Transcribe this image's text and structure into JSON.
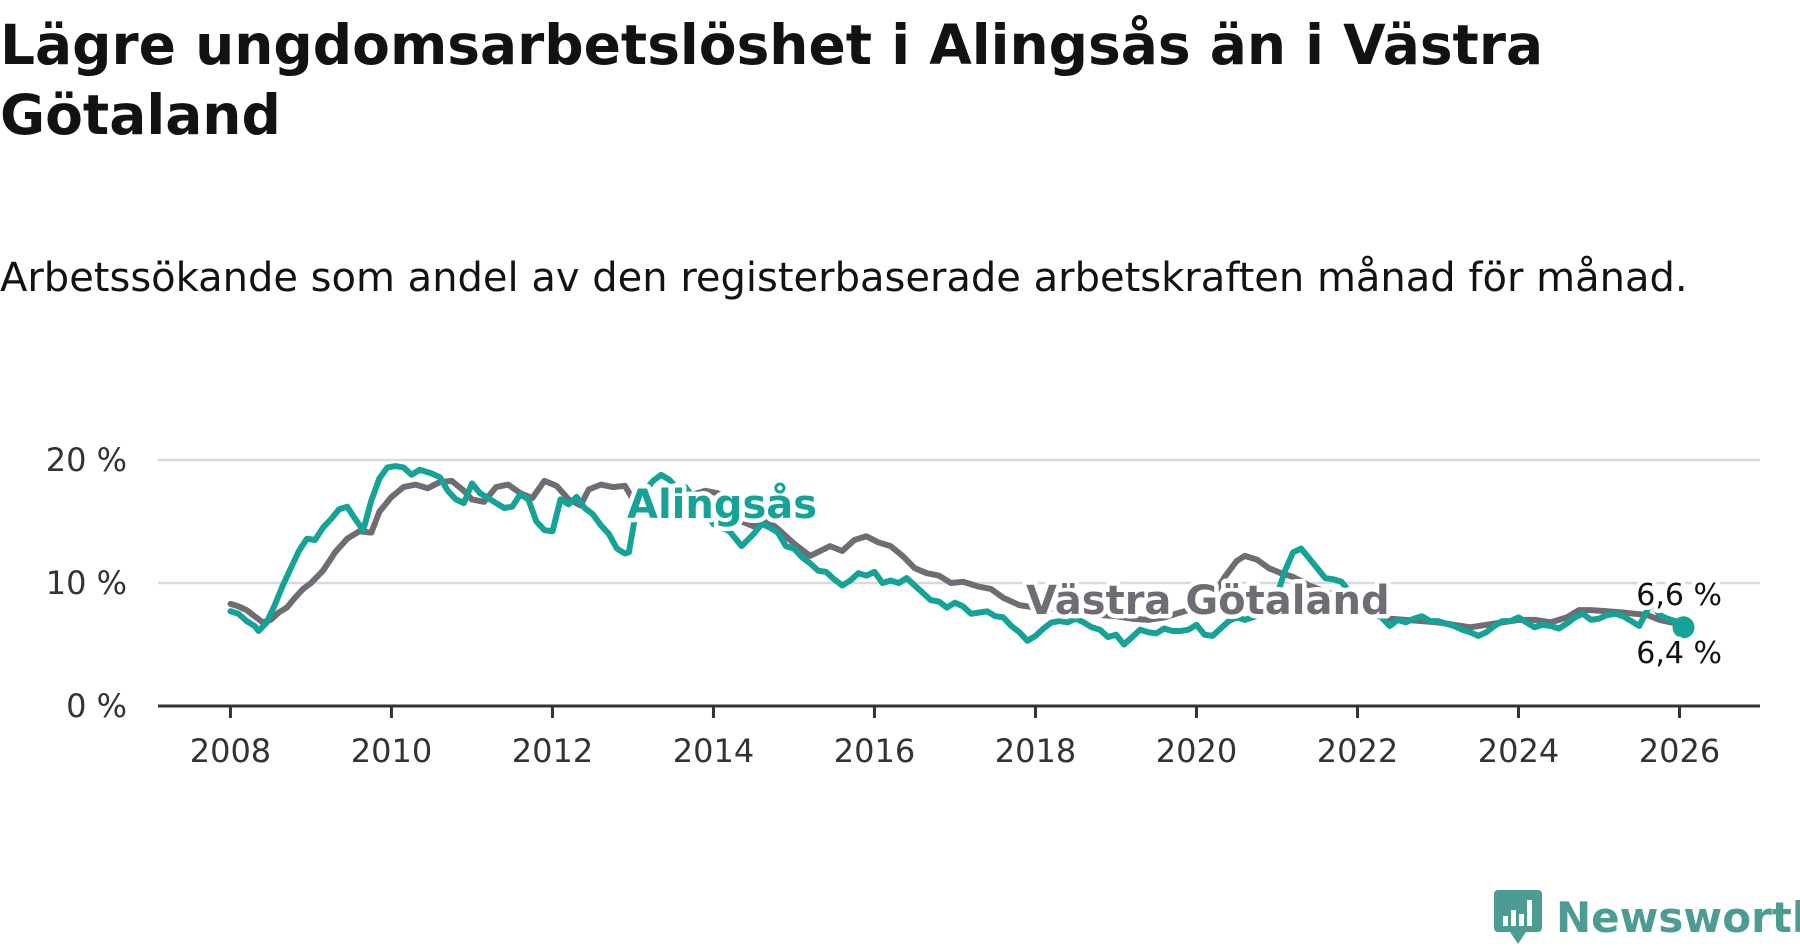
{
  "title": "Lägre ungdomsarbetslöshet i Alingsås än i Västra Götaland",
  "subtitle": "Arbetssökande som andel av den registerbaserade arbetskraften månad för månad.",
  "brand": {
    "name": "Newsworthy",
    "icon": "newsworthy-logo-icon",
    "color": "#4c9c93"
  },
  "chart_data": {
    "type": "line",
    "title": "Lägre ungdomsarbetslöshet i Alingsås än i Västra Götaland",
    "xlabel": "",
    "ylabel": "",
    "xlim": [
      2007.1,
      2027.0
    ],
    "ylim": [
      0,
      20
    ],
    "x_ticks": [
      2008,
      2010,
      2012,
      2014,
      2016,
      2018,
      2020,
      2022,
      2024,
      2026
    ],
    "x_tick_labels": [
      "2008",
      "2010",
      "2012",
      "2014",
      "2016",
      "2018",
      "2020",
      "2022",
      "2024",
      "2026"
    ],
    "y_ticks": [
      0,
      10,
      20
    ],
    "y_tick_labels": [
      "0 %",
      "10 %",
      "20 %"
    ],
    "grid": "horizontal",
    "series": [
      {
        "name": "Västra Götaland",
        "color": "#6f6c74",
        "label": "Västra Götaland",
        "end_label": "6,6 %",
        "end_value": 6.6,
        "points": [
          [
            2008.0,
            8.3
          ],
          [
            2008.1,
            8.1
          ],
          [
            2008.2,
            7.8
          ],
          [
            2008.3,
            7.3
          ],
          [
            2008.4,
            6.8
          ],
          [
            2008.5,
            7.0
          ],
          [
            2008.6,
            7.6
          ],
          [
            2008.7,
            8.0
          ],
          [
            2008.8,
            8.8
          ],
          [
            2008.9,
            9.5
          ],
          [
            2009.0,
            10.0
          ],
          [
            2009.15,
            11.0
          ],
          [
            2009.3,
            12.5
          ],
          [
            2009.45,
            13.6
          ],
          [
            2009.6,
            14.2
          ],
          [
            2009.75,
            14.1
          ],
          [
            2009.85,
            15.8
          ],
          [
            2010.0,
            17.0
          ],
          [
            2010.15,
            17.8
          ],
          [
            2010.3,
            18.0
          ],
          [
            2010.45,
            17.7
          ],
          [
            2010.6,
            18.2
          ],
          [
            2010.75,
            18.3
          ],
          [
            2010.9,
            17.5
          ],
          [
            2011.0,
            16.8
          ],
          [
            2011.15,
            16.6
          ],
          [
            2011.3,
            17.8
          ],
          [
            2011.45,
            18.0
          ],
          [
            2011.6,
            17.3
          ],
          [
            2011.75,
            16.9
          ],
          [
            2011.9,
            18.3
          ],
          [
            2012.05,
            17.9
          ],
          [
            2012.2,
            16.8
          ],
          [
            2012.35,
            16.3
          ],
          [
            2012.45,
            17.6
          ],
          [
            2012.6,
            18.0
          ],
          [
            2012.75,
            17.8
          ],
          [
            2012.9,
            17.9
          ],
          [
            2013.0,
            16.8
          ],
          [
            2013.15,
            16.6
          ],
          [
            2013.3,
            15.9
          ],
          [
            2013.45,
            15.2
          ],
          [
            2013.6,
            16.0
          ],
          [
            2013.75,
            17.2
          ],
          [
            2013.9,
            17.5
          ],
          [
            2014.05,
            17.3
          ],
          [
            2014.2,
            16.8
          ],
          [
            2014.35,
            15.0
          ],
          [
            2014.5,
            14.6
          ],
          [
            2014.65,
            15.2
          ],
          [
            2014.8,
            14.4
          ],
          [
            2015.0,
            13.2
          ],
          [
            2015.2,
            12.2
          ],
          [
            2015.45,
            13.0
          ],
          [
            2015.6,
            12.6
          ],
          [
            2015.75,
            13.5
          ],
          [
            2015.9,
            13.8
          ],
          [
            2016.05,
            13.3
          ],
          [
            2016.2,
            13.0
          ],
          [
            2016.35,
            12.2
          ],
          [
            2016.5,
            11.2
          ],
          [
            2016.65,
            10.8
          ],
          [
            2016.8,
            10.6
          ],
          [
            2016.95,
            10.0
          ],
          [
            2017.1,
            10.1
          ],
          [
            2017.3,
            9.7
          ],
          [
            2017.45,
            9.5
          ],
          [
            2017.6,
            8.8
          ],
          [
            2017.8,
            8.2
          ],
          [
            2018.0,
            8.0
          ],
          [
            2018.2,
            7.9
          ],
          [
            2018.4,
            7.8
          ],
          [
            2018.6,
            7.6
          ],
          [
            2018.8,
            7.4
          ],
          [
            2019.0,
            7.3
          ],
          [
            2019.2,
            7.1
          ],
          [
            2019.4,
            7.0
          ],
          [
            2019.6,
            7.2
          ],
          [
            2019.8,
            7.6
          ],
          [
            2020.0,
            8.0
          ],
          [
            2020.2,
            8.9
          ],
          [
            2020.35,
            10.5
          ],
          [
            2020.5,
            11.8
          ],
          [
            2020.6,
            12.2
          ],
          [
            2020.75,
            11.9
          ],
          [
            2020.9,
            11.2
          ],
          [
            2021.05,
            10.8
          ],
          [
            2021.2,
            10.5
          ],
          [
            2021.4,
            9.8
          ],
          [
            2021.6,
            9.3
          ],
          [
            2021.8,
            8.8
          ],
          [
            2022.0,
            8.2
          ],
          [
            2022.2,
            7.6
          ],
          [
            2022.4,
            7.1
          ],
          [
            2022.6,
            7.0
          ],
          [
            2022.8,
            6.9
          ],
          [
            2023.0,
            6.8
          ],
          [
            2023.2,
            6.6
          ],
          [
            2023.4,
            6.4
          ],
          [
            2023.6,
            6.6
          ],
          [
            2023.8,
            6.8
          ],
          [
            2024.0,
            7.0
          ],
          [
            2024.2,
            7.0
          ],
          [
            2024.4,
            6.8
          ],
          [
            2024.6,
            7.2
          ],
          [
            2024.75,
            7.8
          ],
          [
            2024.9,
            7.8
          ],
          [
            2025.1,
            7.7
          ],
          [
            2025.3,
            7.6
          ],
          [
            2025.45,
            7.5
          ],
          [
            2025.6,
            7.4
          ],
          [
            2025.75,
            7.0
          ],
          [
            2025.9,
            6.8
          ],
          [
            2026.05,
            6.6
          ]
        ]
      },
      {
        "name": "Alingsås",
        "color": "#14a396",
        "label": "Alingsås",
        "end_label": "6,4 %",
        "end_value": 6.4,
        "points": [
          [
            2008.0,
            7.7
          ],
          [
            2008.1,
            7.5
          ],
          [
            2008.2,
            6.9
          ],
          [
            2008.3,
            6.5
          ],
          [
            2008.35,
            6.1
          ],
          [
            2008.45,
            6.8
          ],
          [
            2008.55,
            8.2
          ],
          [
            2008.65,
            9.8
          ],
          [
            2008.75,
            11.2
          ],
          [
            2008.85,
            12.6
          ],
          [
            2008.95,
            13.6
          ],
          [
            2009.05,
            13.5
          ],
          [
            2009.15,
            14.5
          ],
          [
            2009.25,
            15.2
          ],
          [
            2009.35,
            16.0
          ],
          [
            2009.45,
            16.2
          ],
          [
            2009.55,
            15.2
          ],
          [
            2009.65,
            14.3
          ],
          [
            2009.75,
            16.7
          ],
          [
            2009.85,
            18.5
          ],
          [
            2009.95,
            19.4
          ],
          [
            2010.05,
            19.5
          ],
          [
            2010.15,
            19.4
          ],
          [
            2010.25,
            18.8
          ],
          [
            2010.35,
            19.2
          ],
          [
            2010.5,
            18.9
          ],
          [
            2010.6,
            18.6
          ],
          [
            2010.7,
            17.5
          ],
          [
            2010.8,
            16.8
          ],
          [
            2010.9,
            16.5
          ],
          [
            2011.0,
            18.1
          ],
          [
            2011.1,
            17.3
          ],
          [
            2011.2,
            16.9
          ],
          [
            2011.3,
            16.5
          ],
          [
            2011.4,
            16.1
          ],
          [
            2011.5,
            16.2
          ],
          [
            2011.6,
            17.2
          ],
          [
            2011.7,
            16.8
          ],
          [
            2011.8,
            15.0
          ],
          [
            2011.9,
            14.3
          ],
          [
            2012.0,
            14.2
          ],
          [
            2012.1,
            16.8
          ],
          [
            2012.2,
            16.4
          ],
          [
            2012.3,
            17.0
          ],
          [
            2012.4,
            16.1
          ],
          [
            2012.5,
            15.6
          ],
          [
            2012.6,
            14.7
          ],
          [
            2012.7,
            14.0
          ],
          [
            2012.8,
            12.8
          ],
          [
            2012.9,
            12.4
          ],
          [
            2012.95,
            12.5
          ],
          [
            2013.05,
            16.3
          ],
          [
            2013.15,
            17.5
          ],
          [
            2013.25,
            18.3
          ],
          [
            2013.35,
            18.8
          ],
          [
            2013.45,
            18.4
          ],
          [
            2013.55,
            17.7
          ],
          [
            2013.65,
            17.8
          ],
          [
            2014.0,
            14.8
          ],
          [
            2014.2,
            14.2
          ],
          [
            2014.35,
            13.0
          ],
          [
            2014.5,
            14.0
          ],
          [
            2014.6,
            14.8
          ],
          [
            2014.7,
            14.5
          ],
          [
            2014.8,
            14.1
          ],
          [
            2014.9,
            13.0
          ],
          [
            2015.0,
            12.8
          ],
          [
            2015.1,
            12.1
          ],
          [
            2015.2,
            11.6
          ],
          [
            2015.3,
            11.0
          ],
          [
            2015.4,
            10.9
          ],
          [
            2015.5,
            10.3
          ],
          [
            2015.6,
            9.8
          ],
          [
            2015.7,
            10.2
          ],
          [
            2015.8,
            10.8
          ],
          [
            2015.9,
            10.6
          ],
          [
            2016.0,
            10.9
          ],
          [
            2016.1,
            10.0
          ],
          [
            2016.2,
            10.2
          ],
          [
            2016.3,
            10.0
          ],
          [
            2016.4,
            10.4
          ],
          [
            2016.5,
            9.8
          ],
          [
            2016.6,
            9.2
          ],
          [
            2016.7,
            8.6
          ],
          [
            2016.8,
            8.5
          ],
          [
            2016.9,
            8.0
          ],
          [
            2017.0,
            8.4
          ],
          [
            2017.1,
            8.1
          ],
          [
            2017.2,
            7.5
          ],
          [
            2017.3,
            7.6
          ],
          [
            2017.4,
            7.7
          ],
          [
            2017.5,
            7.3
          ],
          [
            2017.6,
            7.2
          ],
          [
            2017.7,
            6.5
          ],
          [
            2017.8,
            6.0
          ],
          [
            2017.9,
            5.3
          ],
          [
            2018.0,
            5.7
          ],
          [
            2018.1,
            6.3
          ],
          [
            2018.2,
            6.8
          ],
          [
            2018.3,
            6.9
          ],
          [
            2018.4,
            6.8
          ],
          [
            2018.5,
            7.1
          ],
          [
            2018.6,
            6.8
          ],
          [
            2018.7,
            6.4
          ],
          [
            2018.8,
            6.2
          ],
          [
            2018.9,
            5.6
          ],
          [
            2019.0,
            5.8
          ],
          [
            2019.1,
            5.0
          ],
          [
            2019.2,
            5.6
          ],
          [
            2019.3,
            6.2
          ],
          [
            2019.4,
            6.0
          ],
          [
            2019.5,
            5.9
          ],
          [
            2019.6,
            6.3
          ],
          [
            2019.7,
            6.1
          ],
          [
            2019.8,
            6.1
          ],
          [
            2019.9,
            6.2
          ],
          [
            2020.0,
            6.6
          ],
          [
            2020.1,
            5.8
          ],
          [
            2020.2,
            5.7
          ],
          [
            2020.3,
            6.3
          ],
          [
            2020.4,
            6.9
          ],
          [
            2020.5,
            7.2
          ],
          [
            2020.6,
            7.0
          ],
          [
            2020.7,
            7.2
          ],
          [
            2020.8,
            7.5
          ],
          [
            2020.9,
            8.1
          ],
          [
            2021.0,
            9.0
          ],
          [
            2021.1,
            11.0
          ],
          [
            2021.2,
            12.5
          ],
          [
            2021.3,
            12.8
          ],
          [
            2021.4,
            12.0
          ],
          [
            2021.5,
            11.2
          ],
          [
            2021.6,
            10.4
          ],
          [
            2021.7,
            10.3
          ],
          [
            2021.8,
            10.1
          ],
          [
            2022.0,
            8.5
          ],
          [
            2022.2,
            7.5
          ],
          [
            2022.3,
            7.2
          ],
          [
            2022.4,
            6.5
          ],
          [
            2022.5,
            7.0
          ],
          [
            2022.6,
            6.8
          ],
          [
            2022.7,
            7.1
          ],
          [
            2022.8,
            7.3
          ],
          [
            2022.9,
            6.9
          ],
          [
            2023.0,
            6.9
          ],
          [
            2023.1,
            6.7
          ],
          [
            2023.2,
            6.5
          ],
          [
            2023.3,
            6.2
          ],
          [
            2023.4,
            6.0
          ],
          [
            2023.5,
            5.7
          ],
          [
            2023.6,
            6.0
          ],
          [
            2023.7,
            6.5
          ],
          [
            2023.8,
            6.9
          ],
          [
            2023.9,
            6.9
          ],
          [
            2024.0,
            7.2
          ],
          [
            2024.1,
            6.8
          ],
          [
            2024.2,
            6.4
          ],
          [
            2024.3,
            6.6
          ],
          [
            2024.4,
            6.5
          ],
          [
            2024.5,
            6.3
          ],
          [
            2024.6,
            6.7
          ],
          [
            2024.7,
            7.2
          ],
          [
            2024.8,
            7.5
          ],
          [
            2024.9,
            7.0
          ],
          [
            2025.0,
            7.1
          ],
          [
            2025.1,
            7.4
          ],
          [
            2025.2,
            7.5
          ],
          [
            2025.3,
            7.3
          ],
          [
            2025.4,
            6.9
          ],
          [
            2025.5,
            6.5
          ],
          [
            2025.6,
            7.8
          ],
          [
            2025.65,
            8.6
          ],
          [
            2025.75,
            7.4
          ],
          [
            2025.85,
            7.1
          ],
          [
            2025.95,
            6.9
          ],
          [
            2026.05,
            6.4
          ]
        ]
      }
    ]
  }
}
